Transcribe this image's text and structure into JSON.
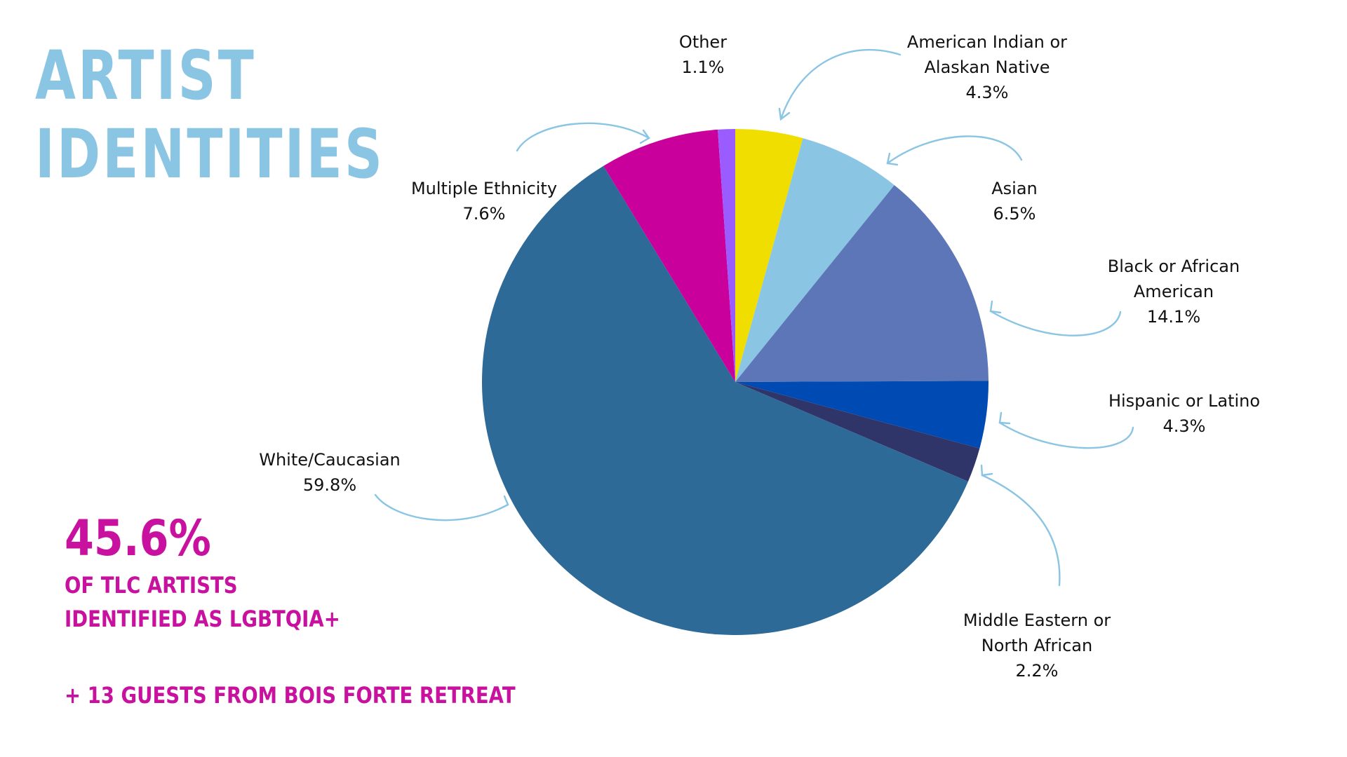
{
  "header": {
    "title_line1": "ARTIST",
    "title_line2": "IDENTITIES"
  },
  "stats": {
    "lgbtq_percent": "45.6%",
    "lgbtq_line1": "OF TLC ARTISTS",
    "lgbtq_line2": "IDENTIFIED AS LGBTQIA+",
    "guests_note": "+ 13 GUESTS FROM BOIS FORTE RETREAT"
  },
  "chart_data": {
    "type": "pie",
    "title": "",
    "start_angle_deg": 0,
    "direction": "clockwise-from-top",
    "slices": [
      {
        "name": "American Indian or Alaskan Native",
        "label_lines": [
          "American Indian or",
          "Alaskan Native"
        ],
        "value": 4.3,
        "display": "4.3%",
        "color": "#f0de00"
      },
      {
        "name": "Asian",
        "label_lines": [
          "Asian"
        ],
        "value": 6.5,
        "display": "6.5%",
        "color": "#8ac5e3"
      },
      {
        "name": "Black or African American",
        "label_lines": [
          "Black or African",
          "American"
        ],
        "value": 14.1,
        "display": "14.1%",
        "color": "#5c76b8"
      },
      {
        "name": "Hispanic or Latino",
        "label_lines": [
          "Hispanic or Latino"
        ],
        "value": 4.3,
        "display": "4.3%",
        "color": "#004bb3"
      },
      {
        "name": "Middle Eastern or North African",
        "label_lines": [
          "Middle Eastern or",
          "North African"
        ],
        "value": 2.2,
        "display": "2.2%",
        "color": "#2f3569"
      },
      {
        "name": "White/Caucasian",
        "label_lines": [
          "White/Caucasian"
        ],
        "value": 59.8,
        "display": "59.8%",
        "color": "#2d6a98"
      },
      {
        "name": "Multiple Ethnicity",
        "label_lines": [
          "Multiple Ethnicity"
        ],
        "value": 7.6,
        "display": "7.6%",
        "color": "#c9009c"
      },
      {
        "name": "Other",
        "label_lines": [
          "Other"
        ],
        "value": 1.1,
        "display": "1.1%",
        "color": "#9b5cff"
      }
    ],
    "colors": {
      "title": "#8ac5e3",
      "stats": "#c8119e",
      "arrows": "#8ac5e3"
    }
  }
}
